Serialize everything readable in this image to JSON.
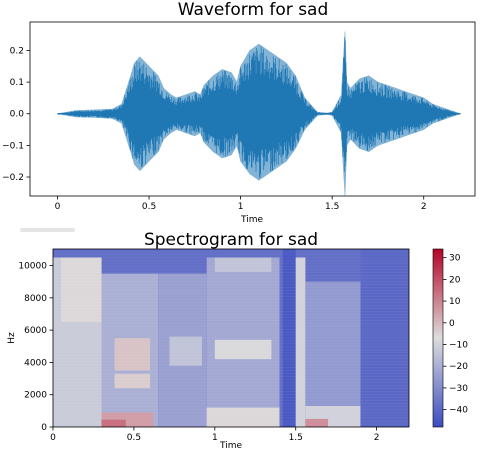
{
  "chart_data": [
    {
      "type": "line",
      "title": "Waveform for sad",
      "xlabel": "Time",
      "ylabel": "",
      "xlim": [
        -0.15,
        2.28
      ],
      "ylim": [
        -0.26,
        0.29
      ],
      "x_ticks": [
        {
          "v": 0,
          "label": "0"
        },
        {
          "v": 0.5,
          "label": "0.5"
        },
        {
          "v": 1,
          "label": "1"
        },
        {
          "v": 1.5,
          "label": "1.5"
        },
        {
          "v": 2,
          "label": "2"
        }
      ],
      "y_ticks": [
        {
          "v": -0.2,
          "label": "−0.2"
        },
        {
          "v": -0.1,
          "label": "−0.1"
        },
        {
          "v": 0,
          "label": "0.0"
        },
        {
          "v": 0.1,
          "label": "0.1"
        },
        {
          "v": 0.2,
          "label": "0.2"
        }
      ],
      "color": "#1f77b4",
      "envelope": {
        "time": [
          0.0,
          0.05,
          0.1,
          0.2,
          0.3,
          0.35,
          0.4,
          0.42,
          0.45,
          0.5,
          0.55,
          0.58,
          0.62,
          0.65,
          0.7,
          0.75,
          0.78,
          0.8,
          0.85,
          0.9,
          0.95,
          0.98,
          1.0,
          1.05,
          1.1,
          1.15,
          1.2,
          1.25,
          1.3,
          1.35,
          1.42,
          1.47,
          1.5,
          1.55,
          1.57,
          1.58,
          1.6,
          1.65,
          1.7,
          1.75,
          1.8,
          1.85,
          1.9,
          1.95,
          2.0,
          2.05,
          2.1,
          2.15,
          2.2
        ],
        "upper": [
          0.0,
          0.005,
          0.01,
          0.012,
          0.015,
          0.03,
          0.12,
          0.16,
          0.18,
          0.15,
          0.12,
          0.08,
          0.06,
          0.05,
          0.06,
          0.07,
          0.06,
          0.09,
          0.12,
          0.14,
          0.13,
          0.1,
          0.15,
          0.2,
          0.22,
          0.2,
          0.18,
          0.16,
          0.12,
          0.05,
          0.005,
          0.002,
          0.005,
          0.06,
          0.26,
          0.1,
          0.08,
          0.11,
          0.12,
          0.1,
          0.09,
          0.08,
          0.07,
          0.06,
          0.05,
          0.03,
          0.02,
          0.01,
          0.0
        ],
        "lower": [
          0.0,
          -0.005,
          -0.01,
          -0.012,
          -0.015,
          -0.03,
          -0.12,
          -0.16,
          -0.18,
          -0.15,
          -0.12,
          -0.08,
          -0.06,
          -0.05,
          -0.06,
          -0.07,
          -0.06,
          -0.09,
          -0.12,
          -0.14,
          -0.13,
          -0.1,
          -0.15,
          -0.19,
          -0.21,
          -0.19,
          -0.17,
          -0.15,
          -0.11,
          -0.05,
          -0.005,
          -0.002,
          -0.005,
          -0.06,
          -0.26,
          -0.1,
          -0.08,
          -0.11,
          -0.12,
          -0.1,
          -0.09,
          -0.08,
          -0.07,
          -0.06,
          -0.05,
          -0.03,
          -0.02,
          -0.01,
          0.0
        ]
      }
    },
    {
      "type": "heatmap",
      "title": "Spectrogram for sad",
      "xlabel": "Time",
      "ylabel": "Hz",
      "xlim": [
        0,
        2.2
      ],
      "ylim": [
        0,
        11025
      ],
      "x_ticks": [
        {
          "v": 0,
          "label": "0"
        },
        {
          "v": 0.5,
          "label": "0.5"
        },
        {
          "v": 1,
          "label": "1"
        },
        {
          "v": 1.5,
          "label": "1.5"
        },
        {
          "v": 2,
          "label": "2"
        }
      ],
      "y_ticks": [
        {
          "v": 0,
          "label": "0"
        },
        {
          "v": 2000,
          "label": "2000"
        },
        {
          "v": 4000,
          "label": "4000"
        },
        {
          "v": 6000,
          "label": "6000"
        },
        {
          "v": 8000,
          "label": "8000"
        },
        {
          "v": 10000,
          "label": "10000"
        }
      ],
      "colorbar": {
        "range": [
          -48,
          34
        ],
        "ticks": [
          {
            "v": 30,
            "label": "30"
          },
          {
            "v": 20,
            "label": "20"
          },
          {
            "v": 10,
            "label": "10"
          },
          {
            "v": 0,
            "label": "0"
          },
          {
            "v": -10,
            "label": "−10"
          },
          {
            "v": -20,
            "label": "−20"
          },
          {
            "v": -30,
            "label": "−30"
          },
          {
            "v": -40,
            "label": "−40"
          }
        ]
      },
      "colors": {
        "low": "#3b4cc0",
        "mid": "#dddddd",
        "high": "#b40426"
      },
      "regions": [
        {
          "t0": 0.0,
          "t1": 2.2,
          "f0": 0,
          "f1": 11025,
          "db": -38
        },
        {
          "t0": 0.0,
          "t1": 0.3,
          "f0": 0,
          "f1": 10500,
          "db": -12
        },
        {
          "t0": 0.05,
          "t1": 0.3,
          "f0": 6500,
          "f1": 10500,
          "db": -6
        },
        {
          "t0": 0.3,
          "t1": 0.65,
          "f0": 0,
          "f1": 9500,
          "db": -20
        },
        {
          "t0": 0.38,
          "t1": 0.6,
          "f0": 3500,
          "f1": 5500,
          "db": -2
        },
        {
          "t0": 0.38,
          "t1": 0.6,
          "f0": 2400,
          "f1": 3300,
          "db": -4
        },
        {
          "t0": 0.3,
          "t1": 0.62,
          "f0": 0,
          "f1": 900,
          "db": 5
        },
        {
          "t0": 0.65,
          "t1": 0.95,
          "f0": 0,
          "f1": 9500,
          "db": -24
        },
        {
          "t0": 0.72,
          "t1": 0.92,
          "f0": 3800,
          "f1": 5600,
          "db": -14
        },
        {
          "t0": 0.95,
          "t1": 1.4,
          "f0": 0,
          "f1": 10500,
          "db": -22
        },
        {
          "t0": 1.0,
          "t1": 1.35,
          "f0": 4200,
          "f1": 5400,
          "db": -8
        },
        {
          "t0": 1.0,
          "t1": 1.35,
          "f0": 9600,
          "f1": 10500,
          "db": -14
        },
        {
          "t0": 0.95,
          "t1": 1.4,
          "f0": 0,
          "f1": 1200,
          "db": -6
        },
        {
          "t0": 1.42,
          "t1": 1.5,
          "f0": 0,
          "f1": 11025,
          "db": -44
        },
        {
          "t0": 1.5,
          "t1": 1.56,
          "f0": 0,
          "f1": 10500,
          "db": -10
        },
        {
          "t0": 1.56,
          "t1": 2.2,
          "f0": 0,
          "f1": 9000,
          "db": -26
        },
        {
          "t0": 1.56,
          "t1": 1.9,
          "f0": 0,
          "f1": 1300,
          "db": -10
        },
        {
          "t0": 1.56,
          "t1": 1.7,
          "f0": 0,
          "f1": 500,
          "db": 8
        },
        {
          "t0": 0.3,
          "t1": 0.45,
          "f0": 0,
          "f1": 450,
          "db": 14
        },
        {
          "t0": 1.9,
          "t1": 2.2,
          "f0": 0,
          "f1": 11025,
          "db": -40
        }
      ]
    }
  ]
}
